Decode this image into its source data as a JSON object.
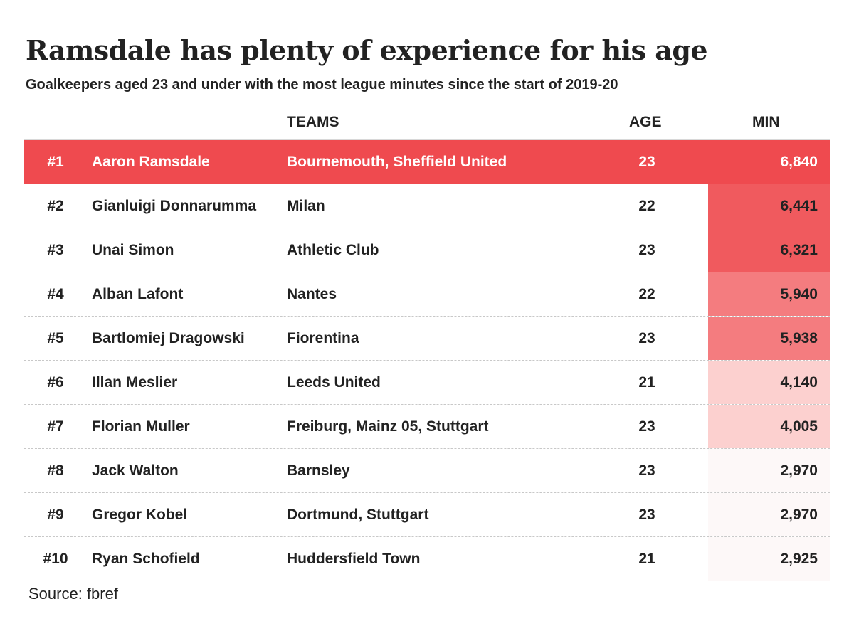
{
  "title": "Ramsdale has plenty of experience for his age",
  "subtitle": "Goalkeepers aged 23 and under with the most league minutes since the start of 2019-20",
  "source": "Source: fbref",
  "colors": {
    "highlight": "#ef4a4f",
    "heat_high": "#f05a5e",
    "heat_mid": "#f47c7f",
    "heat_low": "#fcd0cf",
    "heat_none": "#fdf8f8"
  },
  "chart_data": {
    "type": "table",
    "title": "Ramsdale has plenty of experience for his age",
    "subtitle": "Goalkeepers aged 23 and under with the most league minutes since the start of 2019-20",
    "columns": [
      "",
      "",
      "TEAMS",
      "AGE",
      "MIN"
    ],
    "rows": [
      {
        "rank": "#1",
        "player": "Aaron Ramsdale",
        "teams": "Bournemouth, Sheffield United",
        "age": 23,
        "min": "6,840",
        "min_value": 6840
      },
      {
        "rank": "#2",
        "player": "Gianluigi Donnarumma",
        "teams": "Milan",
        "age": 22,
        "min": "6,441",
        "min_value": 6441
      },
      {
        "rank": "#3",
        "player": "Unai Simon",
        "teams": "Athletic Club",
        "age": 23,
        "min": "6,321",
        "min_value": 6321
      },
      {
        "rank": "#4",
        "player": "Alban Lafont",
        "teams": "Nantes",
        "age": 22,
        "min": "5,940",
        "min_value": 5940
      },
      {
        "rank": "#5",
        "player": "Bartlomiej Dragowski",
        "teams": "Fiorentina",
        "age": 23,
        "min": "5,938",
        "min_value": 5938
      },
      {
        "rank": "#6",
        "player": "Illan Meslier",
        "teams": "Leeds United",
        "age": 21,
        "min": "4,140",
        "min_value": 4140
      },
      {
        "rank": "#7",
        "player": "Florian Muller",
        "teams": "Freiburg, Mainz 05, Stuttgart",
        "age": 23,
        "min": "4,005",
        "min_value": 4005
      },
      {
        "rank": "#8",
        "player": "Jack Walton",
        "teams": "Barnsley",
        "age": 23,
        "min": "2,970",
        "min_value": 2970
      },
      {
        "rank": "#9",
        "player": "Gregor Kobel",
        "teams": "Dortmund, Stuttgart",
        "age": 23,
        "min": "2,970",
        "min_value": 2970
      },
      {
        "rank": "#10",
        "player": "Ryan Schofield",
        "teams": "Huddersfield Town",
        "age": 21,
        "min": "2,925",
        "min_value": 2925
      }
    ]
  }
}
